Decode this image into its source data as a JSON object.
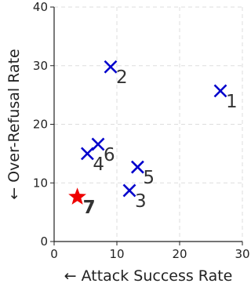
{
  "chart_data": {
    "type": "scatter",
    "xlabel": "← Attack Success Rate",
    "ylabel": "← Over-Refusal Rate",
    "xlim": [
      0,
      30
    ],
    "ylim": [
      0,
      40
    ],
    "xticks": [
      "0",
      "10",
      "20",
      "30"
    ],
    "yticks": [
      "0",
      "10",
      "20",
      "30",
      "40"
    ],
    "grid": true,
    "points": [
      {
        "label": "1",
        "x": 26.5,
        "y": 25.7,
        "marker": "x",
        "color": "#0000cc"
      },
      {
        "label": "2",
        "x": 9.0,
        "y": 29.8,
        "marker": "x",
        "color": "#0000cc"
      },
      {
        "label": "3",
        "x": 12.0,
        "y": 8.7,
        "marker": "x",
        "color": "#0000cc"
      },
      {
        "label": "4",
        "x": 5.3,
        "y": 15.0,
        "marker": "x",
        "color": "#0000cc"
      },
      {
        "label": "5",
        "x": 13.3,
        "y": 12.7,
        "marker": "x",
        "color": "#0000cc"
      },
      {
        "label": "6",
        "x": 7.0,
        "y": 16.6,
        "marker": "x",
        "color": "#0000cc"
      },
      {
        "label": "7",
        "x": 3.7,
        "y": 7.6,
        "marker": "star",
        "color": "#ee0000",
        "bold": true
      }
    ]
  }
}
